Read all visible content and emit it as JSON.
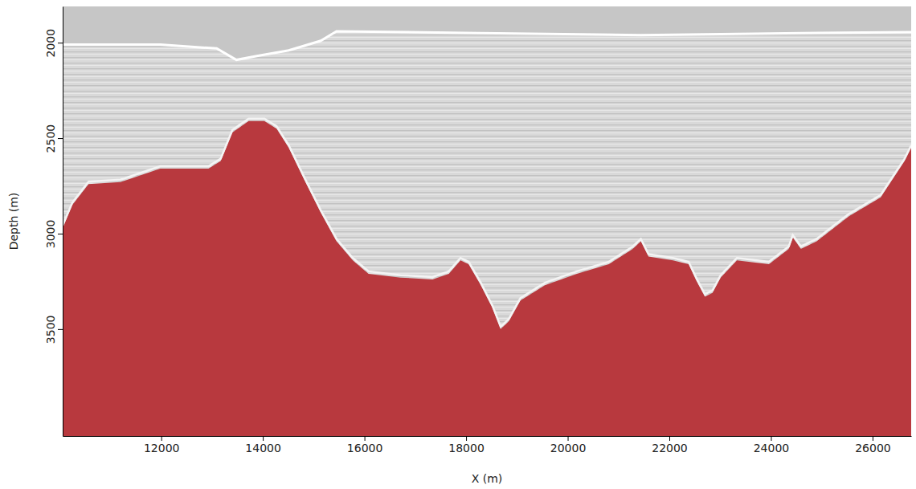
{
  "chart_data": {
    "type": "area",
    "x_label": "X (m)",
    "y_label": "Depth (m)",
    "xlim": [
      10060,
      26760
    ],
    "ylim": [
      4060,
      1810
    ],
    "xticks": [
      12000,
      14000,
      16000,
      18000,
      20000,
      22000,
      24000,
      26000
    ],
    "yticks": [
      2000,
      2500,
      3000,
      3500
    ],
    "tick_labels": true,
    "series": [
      {
        "type": "line",
        "color": "#ffffff",
        "x": [
          10060,
          11980,
          13090,
          13480,
          13880,
          14510,
          15140,
          15450,
          18290,
          21440,
          24590,
          26760
        ],
        "values": [
          2010,
          2010,
          2030,
          2090,
          2070,
          2040,
          1990,
          1940,
          1950,
          1960,
          1950,
          1945
        ]
      },
      {
        "type": "area",
        "color": "#b8393e",
        "x": [
          10060,
          10250,
          10570,
          11200,
          11980,
          12930,
          13170,
          13400,
          13720,
          14030,
          14270,
          14510,
          14820,
          15140,
          15450,
          15770,
          16080,
          16710,
          17340,
          17660,
          17890,
          18050,
          18290,
          18520,
          18680,
          18840,
          19070,
          19550,
          20180,
          20810,
          21280,
          21440,
          21590,
          22070,
          22380,
          22540,
          22700,
          22850,
          23010,
          23330,
          23960,
          24350,
          24430,
          24590,
          24900,
          25530,
          26160,
          26630,
          26760
        ],
        "values": [
          2970,
          2850,
          2740,
          2730,
          2660,
          2660,
          2620,
          2470,
          2410,
          2410,
          2450,
          2550,
          2720,
          2890,
          3040,
          3140,
          3210,
          3230,
          3240,
          3210,
          3140,
          3160,
          3270,
          3390,
          3500,
          3460,
          3350,
          3270,
          3210,
          3160,
          3080,
          3040,
          3120,
          3140,
          3160,
          3250,
          3330,
          3310,
          3230,
          3140,
          3160,
          3080,
          3020,
          3080,
          3040,
          2910,
          2810,
          2620,
          2550
        ]
      }
    ]
  }
}
